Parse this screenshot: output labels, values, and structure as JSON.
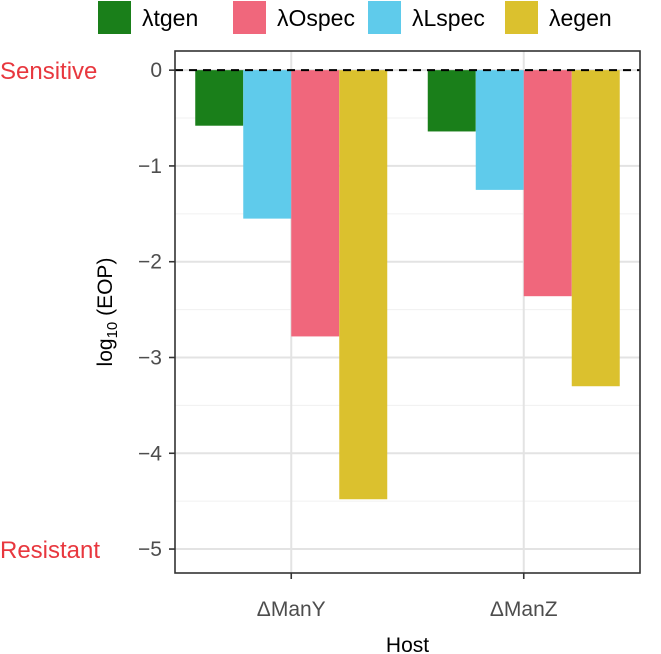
{
  "chart_data": {
    "type": "bar",
    "title": "",
    "xlabel": "Host",
    "ylabel_main": "log",
    "ylabel_sub": "10",
    "ylabel_rest": " (EOP)",
    "categories": [
      "ΔManY",
      "ΔManZ"
    ],
    "series": [
      {
        "name": "λtgen",
        "color": "#1a7f1a",
        "values": [
          -0.58,
          -0.64
        ]
      },
      {
        "name": "λLspec",
        "color": "#5fcbeb",
        "values": [
          -1.55,
          -1.25
        ]
      },
      {
        "name": "λOspec",
        "color": "#f0677c",
        "values": [
          -2.78,
          -2.36
        ]
      },
      {
        "name": "λegen",
        "color": "#dbc12e",
        "values": [
          -4.48,
          -3.3
        ]
      }
    ],
    "legend_order": [
      "λtgen",
      "λOspec",
      "λLspec",
      "λegen"
    ],
    "ylim": [
      -5.25,
      0.2
    ],
    "yticks": [
      0,
      -1,
      -2,
      -3,
      -4,
      -5
    ],
    "ytick_labels": [
      "0",
      "−1",
      "−2",
      "−3",
      "−4",
      "−5"
    ],
    "reference_line": {
      "y": 0,
      "style": "dashed"
    },
    "annotations": [
      {
        "text": "Sensitive",
        "y": 0,
        "color": "#e8373e"
      },
      {
        "text": "Resistant",
        "y": -5,
        "color": "#e8373e"
      }
    ],
    "grid": true,
    "legend_position": "top"
  }
}
